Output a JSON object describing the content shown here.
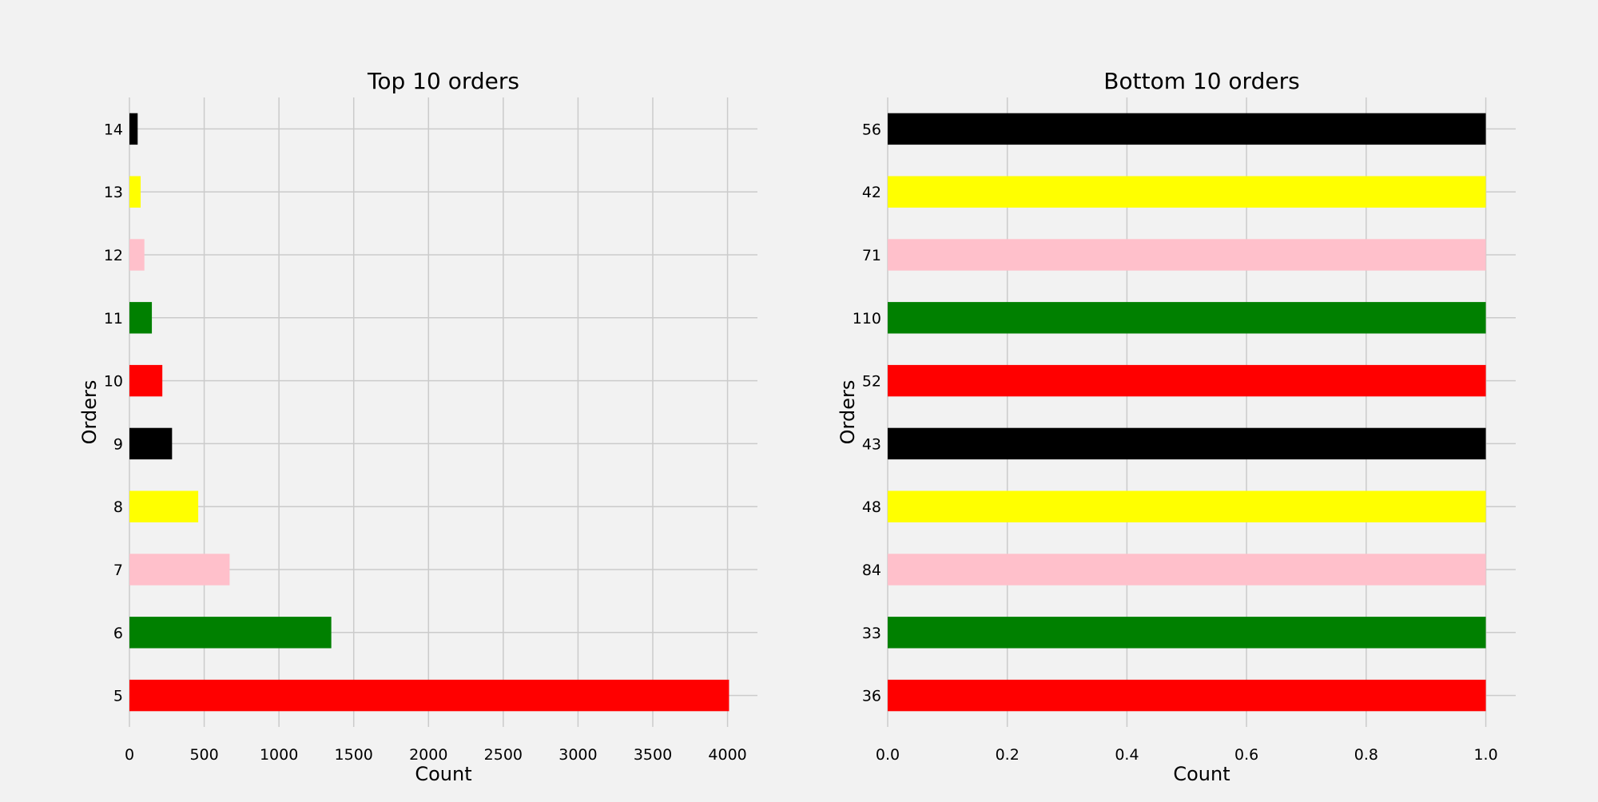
{
  "chart_data": [
    {
      "type": "bar",
      "orientation": "horizontal",
      "title": "Top 10 orders",
      "xlabel": "Count",
      "ylabel": "Orders",
      "categories": [
        "5",
        "6",
        "7",
        "8",
        "9",
        "10",
        "11",
        "12",
        "13",
        "14"
      ],
      "values": [
        4010,
        1350,
        670,
        460,
        285,
        220,
        150,
        100,
        75,
        55
      ],
      "colors": [
        "#ff0000",
        "#008000",
        "#ffc0cb",
        "#ffff00",
        "#000000",
        "#ff0000",
        "#008000",
        "#ffc0cb",
        "#ffff00",
        "#000000"
      ],
      "xlim": [
        0,
        4200
      ],
      "xticks": [
        0,
        500,
        1000,
        1500,
        2000,
        2500,
        3000,
        3500,
        4000
      ],
      "xtick_labels": [
        "0",
        "500",
        "1000",
        "1500",
        "2000",
        "2500",
        "3000",
        "3500",
        "4000"
      ],
      "grid": true
    },
    {
      "type": "bar",
      "orientation": "horizontal",
      "title": "Bottom 10 orders",
      "xlabel": "Count",
      "ylabel": "Orders",
      "categories": [
        "36",
        "33",
        "84",
        "48",
        "43",
        "52",
        "110",
        "71",
        "42",
        "56"
      ],
      "values": [
        1,
        1,
        1,
        1,
        1,
        1,
        1,
        1,
        1,
        1
      ],
      "colors": [
        "#ff0000",
        "#008000",
        "#ffc0cb",
        "#ffff00",
        "#000000",
        "#ff0000",
        "#008000",
        "#ffc0cb",
        "#ffff00",
        "#000000"
      ],
      "xlim": [
        0,
        1.05
      ],
      "xticks": [
        0,
        0.2,
        0.4,
        0.6,
        0.8,
        1.0
      ],
      "xtick_labels": [
        "0.0",
        "0.2",
        "0.4",
        "0.6",
        "0.8",
        "1.0"
      ],
      "grid": true
    }
  ]
}
